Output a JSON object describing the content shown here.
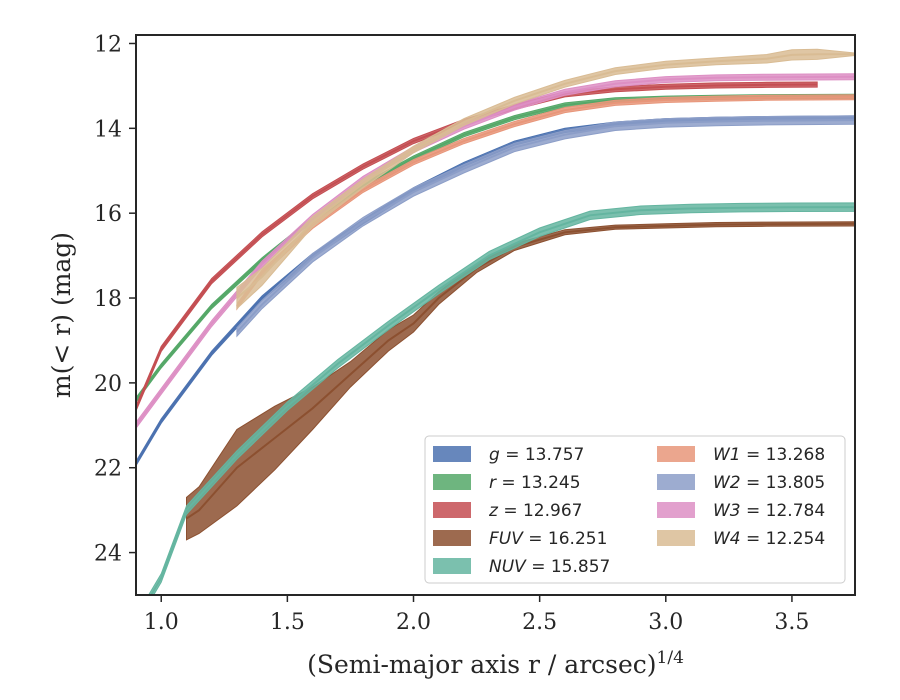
{
  "chart_data": {
    "type": "line",
    "xlabel": "(Semi-major axis r / arcsec)",
    "xlabel_sup": "1/4",
    "ylabel": "m(< r) (mag)",
    "xlim": [
      0.9,
      3.75
    ],
    "ylim": [
      25.0,
      11.8
    ],
    "y_inverted": true,
    "xticks": [
      1.0,
      1.5,
      2.0,
      2.5,
      3.0,
      3.5
    ],
    "xtick_labels": [
      "1.0",
      "1.5",
      "2.0",
      "2.5",
      "3.0",
      "3.5"
    ],
    "yticks": [
      12,
      14,
      16,
      18,
      20,
      22,
      24
    ],
    "ytick_labels": [
      "12",
      "14",
      "16",
      "18",
      "20",
      "22",
      "24"
    ],
    "grid": false,
    "legend_position": "lower-right",
    "legend_columns": 2,
    "series": [
      {
        "name": "g",
        "total": "13.757",
        "color": "#4c72b0",
        "x": [
          0.9,
          1.0,
          1.2,
          1.4,
          1.6,
          1.8,
          2.0,
          2.2,
          2.4,
          2.6,
          2.8,
          3.0,
          3.2,
          3.4,
          3.75
        ],
        "y": [
          21.9,
          20.9,
          19.3,
          18.0,
          17.0,
          16.2,
          15.45,
          14.85,
          14.35,
          14.05,
          13.9,
          13.82,
          13.79,
          13.77,
          13.757
        ],
        "band": 0.05
      },
      {
        "name": "r",
        "total": "13.245",
        "color": "#55a868",
        "x": [
          0.9,
          1.0,
          1.2,
          1.4,
          1.6,
          1.8,
          2.0,
          2.2,
          2.4,
          2.6,
          2.8,
          3.0,
          3.2,
          3.4,
          3.75
        ],
        "y": [
          20.4,
          19.6,
          18.2,
          17.1,
          16.15,
          15.35,
          14.7,
          14.15,
          13.75,
          13.45,
          13.33,
          13.29,
          13.27,
          13.255,
          13.245
        ],
        "band": 0.05
      },
      {
        "name": "z",
        "total": "12.967",
        "color": "#c44e52",
        "x": [
          0.9,
          1.0,
          1.2,
          1.4,
          1.6,
          1.8,
          2.0,
          2.2,
          2.4,
          2.6,
          2.8,
          3.0,
          3.2,
          3.4,
          3.6
        ],
        "y": [
          20.6,
          19.2,
          17.6,
          16.5,
          15.6,
          14.9,
          14.3,
          13.85,
          13.5,
          13.2,
          13.08,
          13.02,
          12.99,
          12.975,
          12.967
        ],
        "band": 0.06
      },
      {
        "name": "FUV",
        "total": "16.251",
        "color": "#8c5030",
        "x": [
          1.1,
          1.15,
          1.3,
          1.45,
          1.6,
          1.75,
          1.9,
          2.0,
          2.1,
          2.25,
          2.4,
          2.6,
          2.8,
          3.0,
          3.2,
          3.4,
          3.75
        ],
        "y": [
          23.2,
          23.0,
          22.0,
          21.3,
          20.6,
          19.8,
          19.0,
          18.6,
          18.0,
          17.3,
          16.8,
          16.45,
          16.33,
          16.3,
          16.27,
          16.26,
          16.251
        ],
        "band": [
          0.5,
          0.55,
          0.9,
          0.75,
          0.5,
          0.3,
          0.25,
          0.2,
          0.15,
          0.1,
          0.08,
          0.06,
          0.05,
          0.05,
          0.05,
          0.05,
          0.05
        ]
      },
      {
        "name": "NUV",
        "total": "15.857",
        "color": "#64b5a0",
        "x": [
          0.9,
          1.0,
          1.1,
          1.3,
          1.5,
          1.7,
          1.9,
          2.1,
          2.3,
          2.5,
          2.7,
          2.9,
          3.1,
          3.3,
          3.5,
          3.75
        ],
        "y": [
          25.6,
          24.6,
          23.0,
          21.7,
          20.55,
          19.55,
          18.65,
          17.8,
          17.0,
          16.45,
          16.05,
          15.93,
          15.89,
          15.87,
          15.86,
          15.857
        ],
        "band": 0.1
      },
      {
        "name": "W1",
        "total": "13.268",
        "color": "#e8967a",
        "x": [
          1.3,
          1.4,
          1.6,
          1.8,
          2.0,
          2.2,
          2.4,
          2.6,
          2.8,
          3.0,
          3.2,
          3.4,
          3.75
        ],
        "y": [
          18.2,
          17.4,
          16.3,
          15.45,
          14.8,
          14.3,
          13.9,
          13.57,
          13.4,
          13.33,
          13.3,
          13.28,
          13.268
        ],
        "band": 0.06
      },
      {
        "name": "W2",
        "total": "13.805",
        "color": "#8c9ec8",
        "x": [
          1.3,
          1.4,
          1.6,
          1.8,
          2.0,
          2.2,
          2.4,
          2.6,
          2.8,
          3.0,
          3.2,
          3.4,
          3.75
        ],
        "y": [
          18.8,
          18.15,
          17.05,
          16.2,
          15.5,
          14.95,
          14.45,
          14.15,
          13.95,
          13.87,
          13.84,
          13.82,
          13.805
        ],
        "band": 0.1
      },
      {
        "name": "W3",
        "total": "12.784",
        "color": "#dd8fc4",
        "x": [
          0.9,
          1.0,
          1.2,
          1.4,
          1.6,
          1.8,
          2.0,
          2.2,
          2.4,
          2.6,
          2.8,
          3.0,
          3.2,
          3.4,
          3.75
        ],
        "y": [
          21.0,
          20.2,
          18.6,
          17.2,
          16.1,
          15.2,
          14.5,
          13.95,
          13.5,
          13.15,
          12.95,
          12.85,
          12.81,
          12.795,
          12.784
        ],
        "band": 0.07
      },
      {
        "name": "W4",
        "total": "12.254",
        "color": "#d9bc94",
        "x": [
          1.3,
          1.4,
          1.6,
          1.8,
          2.0,
          2.2,
          2.4,
          2.6,
          2.8,
          3.0,
          3.2,
          3.4,
          3.5,
          3.6,
          3.75
        ],
        "y": [
          18.0,
          17.5,
          16.2,
          15.3,
          14.5,
          13.85,
          13.35,
          12.95,
          12.65,
          12.5,
          12.42,
          12.36,
          12.27,
          12.254,
          12.254
        ],
        "band": [
          0.25,
          0.2,
          0.12,
          0.1,
          0.08,
          0.08,
          0.08,
          0.08,
          0.08,
          0.08,
          0.08,
          0.1,
          0.12,
          0.12,
          0.03
        ]
      }
    ]
  }
}
